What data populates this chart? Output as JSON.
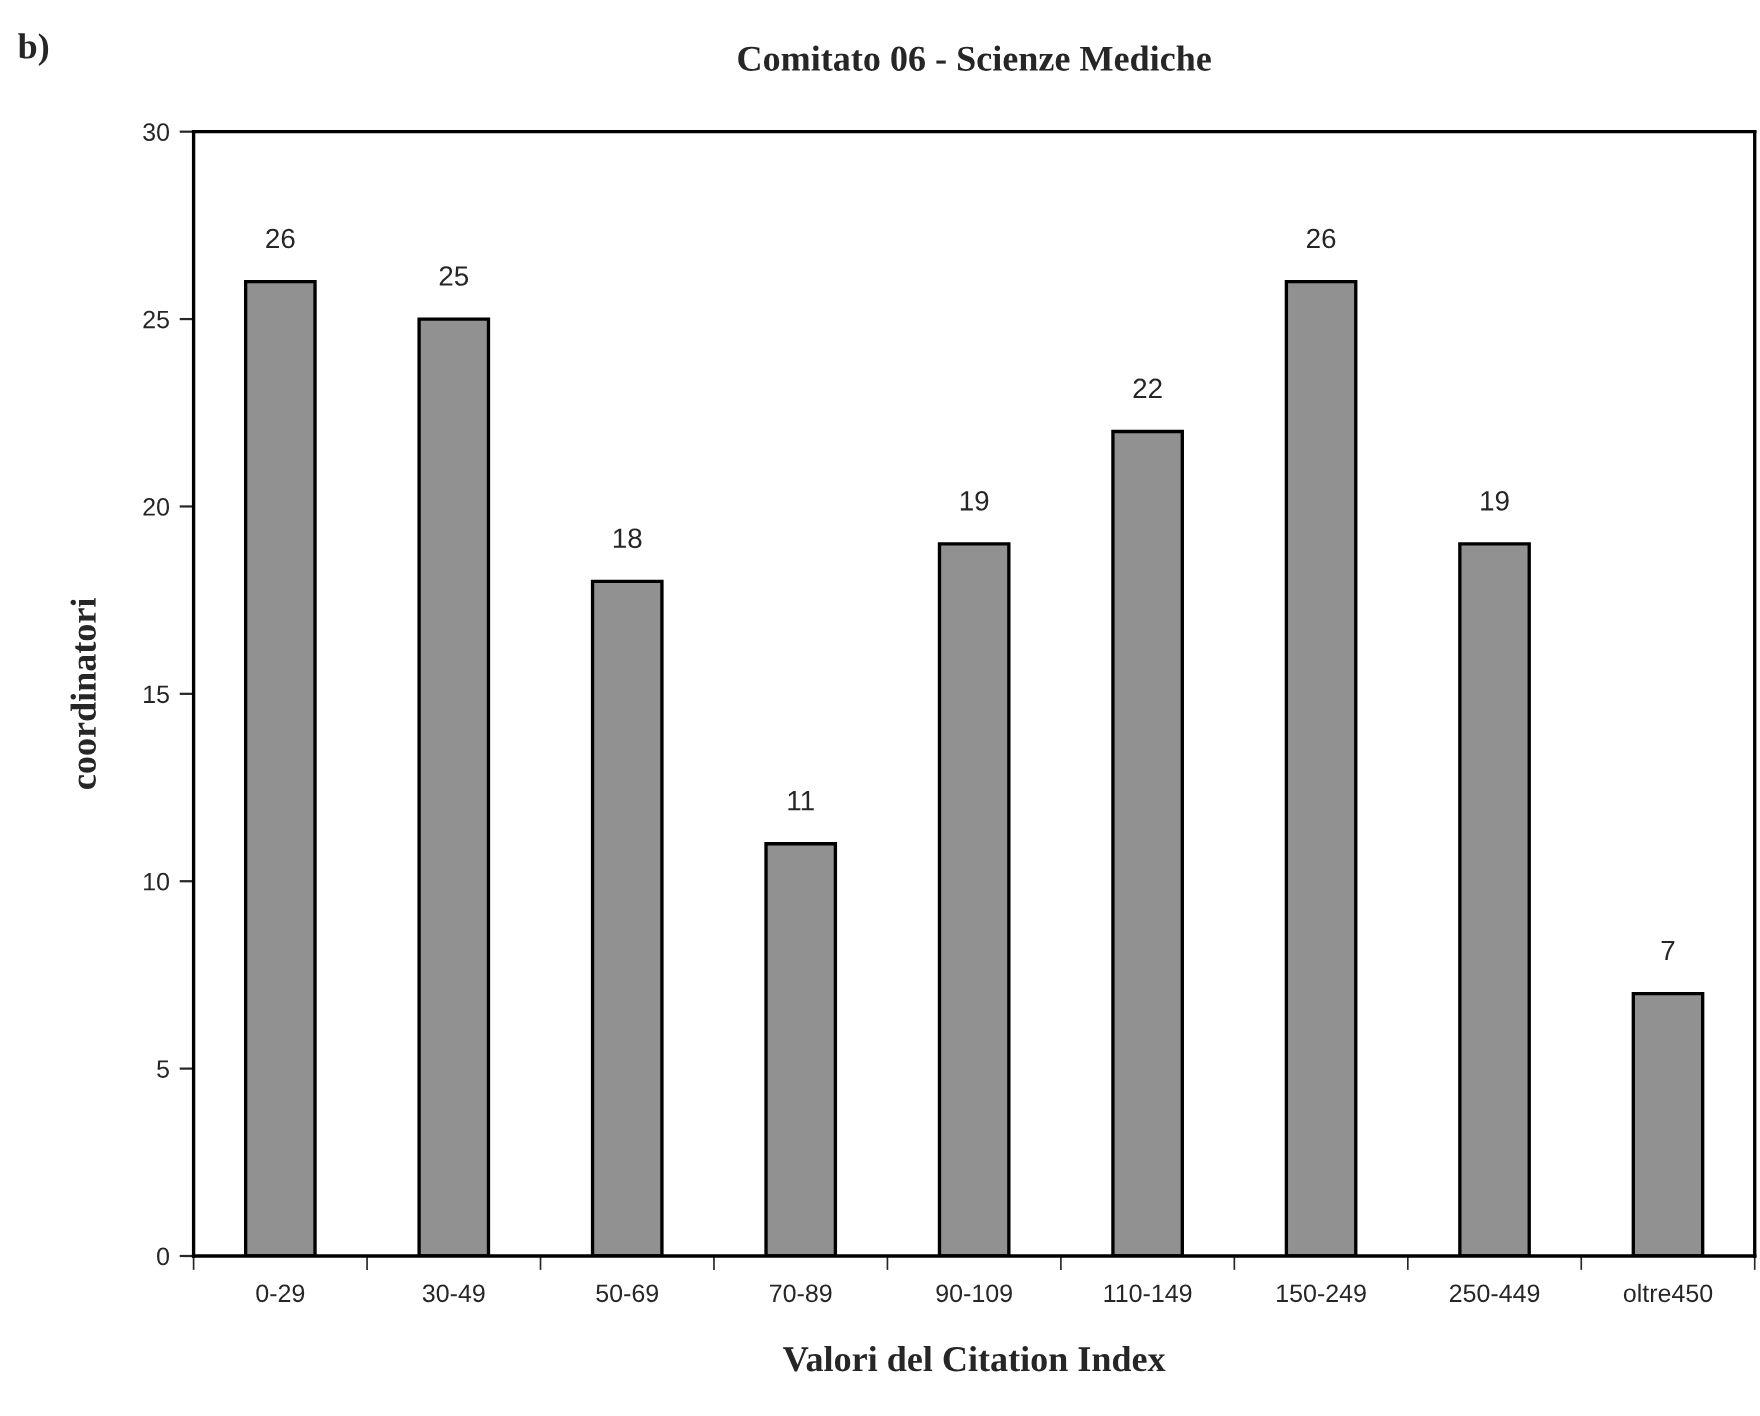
{
  "chart_data": {
    "type": "bar",
    "title": "Comitato 06 - Scienze Mediche",
    "xlabel": "Valori del Citation Index",
    "ylabel": "coordinatori",
    "annotations": [
      "b)"
    ],
    "categories": [
      "0-29",
      "30-49",
      "50-69",
      "70-89",
      "90-109",
      "110-149",
      "150-249",
      "250-449",
      "oltre450"
    ],
    "values": [
      26,
      25,
      18,
      11,
      19,
      22,
      26,
      19,
      7
    ],
    "color": "#919191",
    "ylim": [
      0,
      30
    ],
    "yticks": [
      0,
      5,
      10,
      15,
      20,
      25,
      30
    ],
    "data_labels": true,
    "grid": false,
    "legend": false
  }
}
